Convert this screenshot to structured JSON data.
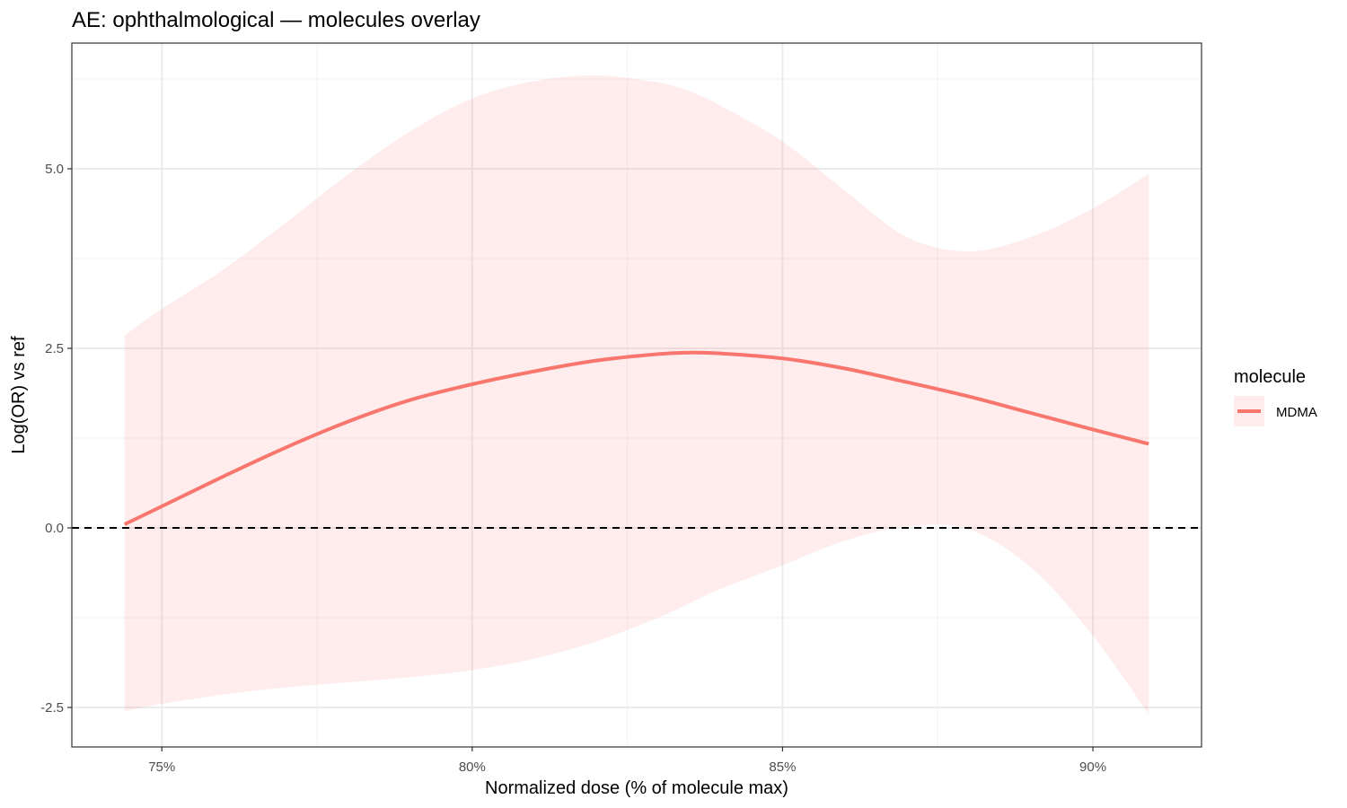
{
  "chart_data": {
    "type": "line",
    "title": "AE: ophthalmological — molecules overlay",
    "xlabel": "Normalized dose (% of molecule max)",
    "ylabel": "Log(OR) vs ref",
    "xlim": [
      73.55,
      91.75
    ],
    "ylim": [
      -3.05,
      6.75
    ],
    "x_ticks": [
      75,
      80,
      85,
      90
    ],
    "x_tick_labels": [
      "75%",
      "80%",
      "85%",
      "90%"
    ],
    "x_minor_ticks": [
      77.5,
      82.5,
      87.5
    ],
    "y_ticks": [
      -2.5,
      0.0,
      2.5,
      5.0
    ],
    "y_tick_labels": [
      "-2.5",
      "0.0",
      "2.5",
      "5.0"
    ],
    "y_minor_ticks": [
      -1.25,
      1.25,
      3.75,
      6.25
    ],
    "grid": true,
    "reference_line": {
      "y": 0,
      "style": "dashed",
      "color": "#000000"
    },
    "legend": {
      "title": "molecule",
      "position": "right"
    },
    "series": [
      {
        "name": "MDMA",
        "color": "#f8766d",
        "x": [
          74.4,
          75.0,
          76.0,
          77.0,
          78.0,
          79.0,
          80.0,
          81.0,
          82.0,
          83.0,
          83.5,
          84.0,
          85.0,
          86.0,
          87.0,
          88.0,
          89.0,
          90.0,
          90.9
        ],
        "y": [
          0.05,
          0.3,
          0.72,
          1.12,
          1.48,
          1.78,
          2.0,
          2.18,
          2.33,
          2.42,
          2.44,
          2.43,
          2.36,
          2.22,
          2.03,
          1.83,
          1.6,
          1.37,
          1.17
        ],
        "lower": [
          -2.55,
          -2.45,
          -2.32,
          -2.22,
          -2.15,
          -2.08,
          -1.98,
          -1.82,
          -1.58,
          -1.25,
          -1.05,
          -0.85,
          -0.52,
          -0.18,
          0.02,
          -0.02,
          -0.55,
          -1.5,
          -2.6
        ],
        "upper": [
          2.68,
          3.05,
          3.6,
          4.25,
          4.92,
          5.52,
          5.98,
          6.22,
          6.3,
          6.2,
          6.08,
          5.88,
          5.38,
          4.7,
          4.05,
          3.85,
          4.05,
          4.45,
          4.93
        ]
      }
    ]
  }
}
